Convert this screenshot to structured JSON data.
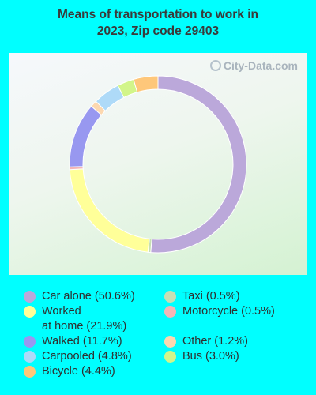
{
  "title_line1": "Means of transportation to work in",
  "title_line2": "2023, Zip code 29403",
  "watermark": "City-Data.com",
  "chart_data": {
    "type": "pie",
    "donut": true,
    "title": "Means of transportation to work in 2023, Zip code 29403",
    "slices": [
      {
        "label": "Car alone",
        "value": 50.6,
        "color": "#BBA8DA",
        "legend": "Car alone (50.6%)"
      },
      {
        "label": "Taxi",
        "value": 0.5,
        "color": "#C7DFB4",
        "legend": "Taxi (0.5%)"
      },
      {
        "label": "Worked at home",
        "value": 21.9,
        "color": "#FFFF99",
        "legend": "Worked\nat home (21.9%)"
      },
      {
        "label": "Motorcycle",
        "value": 0.5,
        "color": "#F4B6B6",
        "legend": "Motorcycle (0.5%)"
      },
      {
        "label": "Walked",
        "value": 11.7,
        "color": "#9898F0",
        "legend": "Walked (11.7%)"
      },
      {
        "label": "Other",
        "value": 1.2,
        "color": "#FCD8B0",
        "legend": "Other (1.2%)"
      },
      {
        "label": "Carpooled",
        "value": 4.8,
        "color": "#AEDAF8",
        "legend": "Carpooled (4.8%)"
      },
      {
        "label": "Bus",
        "value": 3.0,
        "color": "#D2F58A",
        "legend": "Bus (3.0%)"
      },
      {
        "label": "Bicycle",
        "value": 4.4,
        "color": "#FEC77A",
        "legend": "Bicycle (4.4%)"
      }
    ],
    "legend_placement": "bottom"
  },
  "legend": {
    "left": [
      {
        "text": "Car alone (50.6%)",
        "color": "#BBA8DA"
      },
      {
        "text": "Worked\nat home (21.9%)",
        "color": "#FFFF99"
      },
      {
        "text": "Walked (11.7%)",
        "color": "#9898F0"
      },
      {
        "text": "Carpooled (4.8%)",
        "color": "#AEDAF8"
      },
      {
        "text": "Bicycle (4.4%)",
        "color": "#FEC77A"
      }
    ],
    "right": [
      {
        "text": "Taxi (0.5%)",
        "color": "#C7DFB4"
      },
      {
        "text": "Motorcycle (0.5%)",
        "color": "#F4B6B6"
      },
      {
        "text": "Other (1.2%)",
        "color": "#FCD8B0"
      },
      {
        "text": "Bus (3.0%)",
        "color": "#D2F58A"
      }
    ]
  }
}
